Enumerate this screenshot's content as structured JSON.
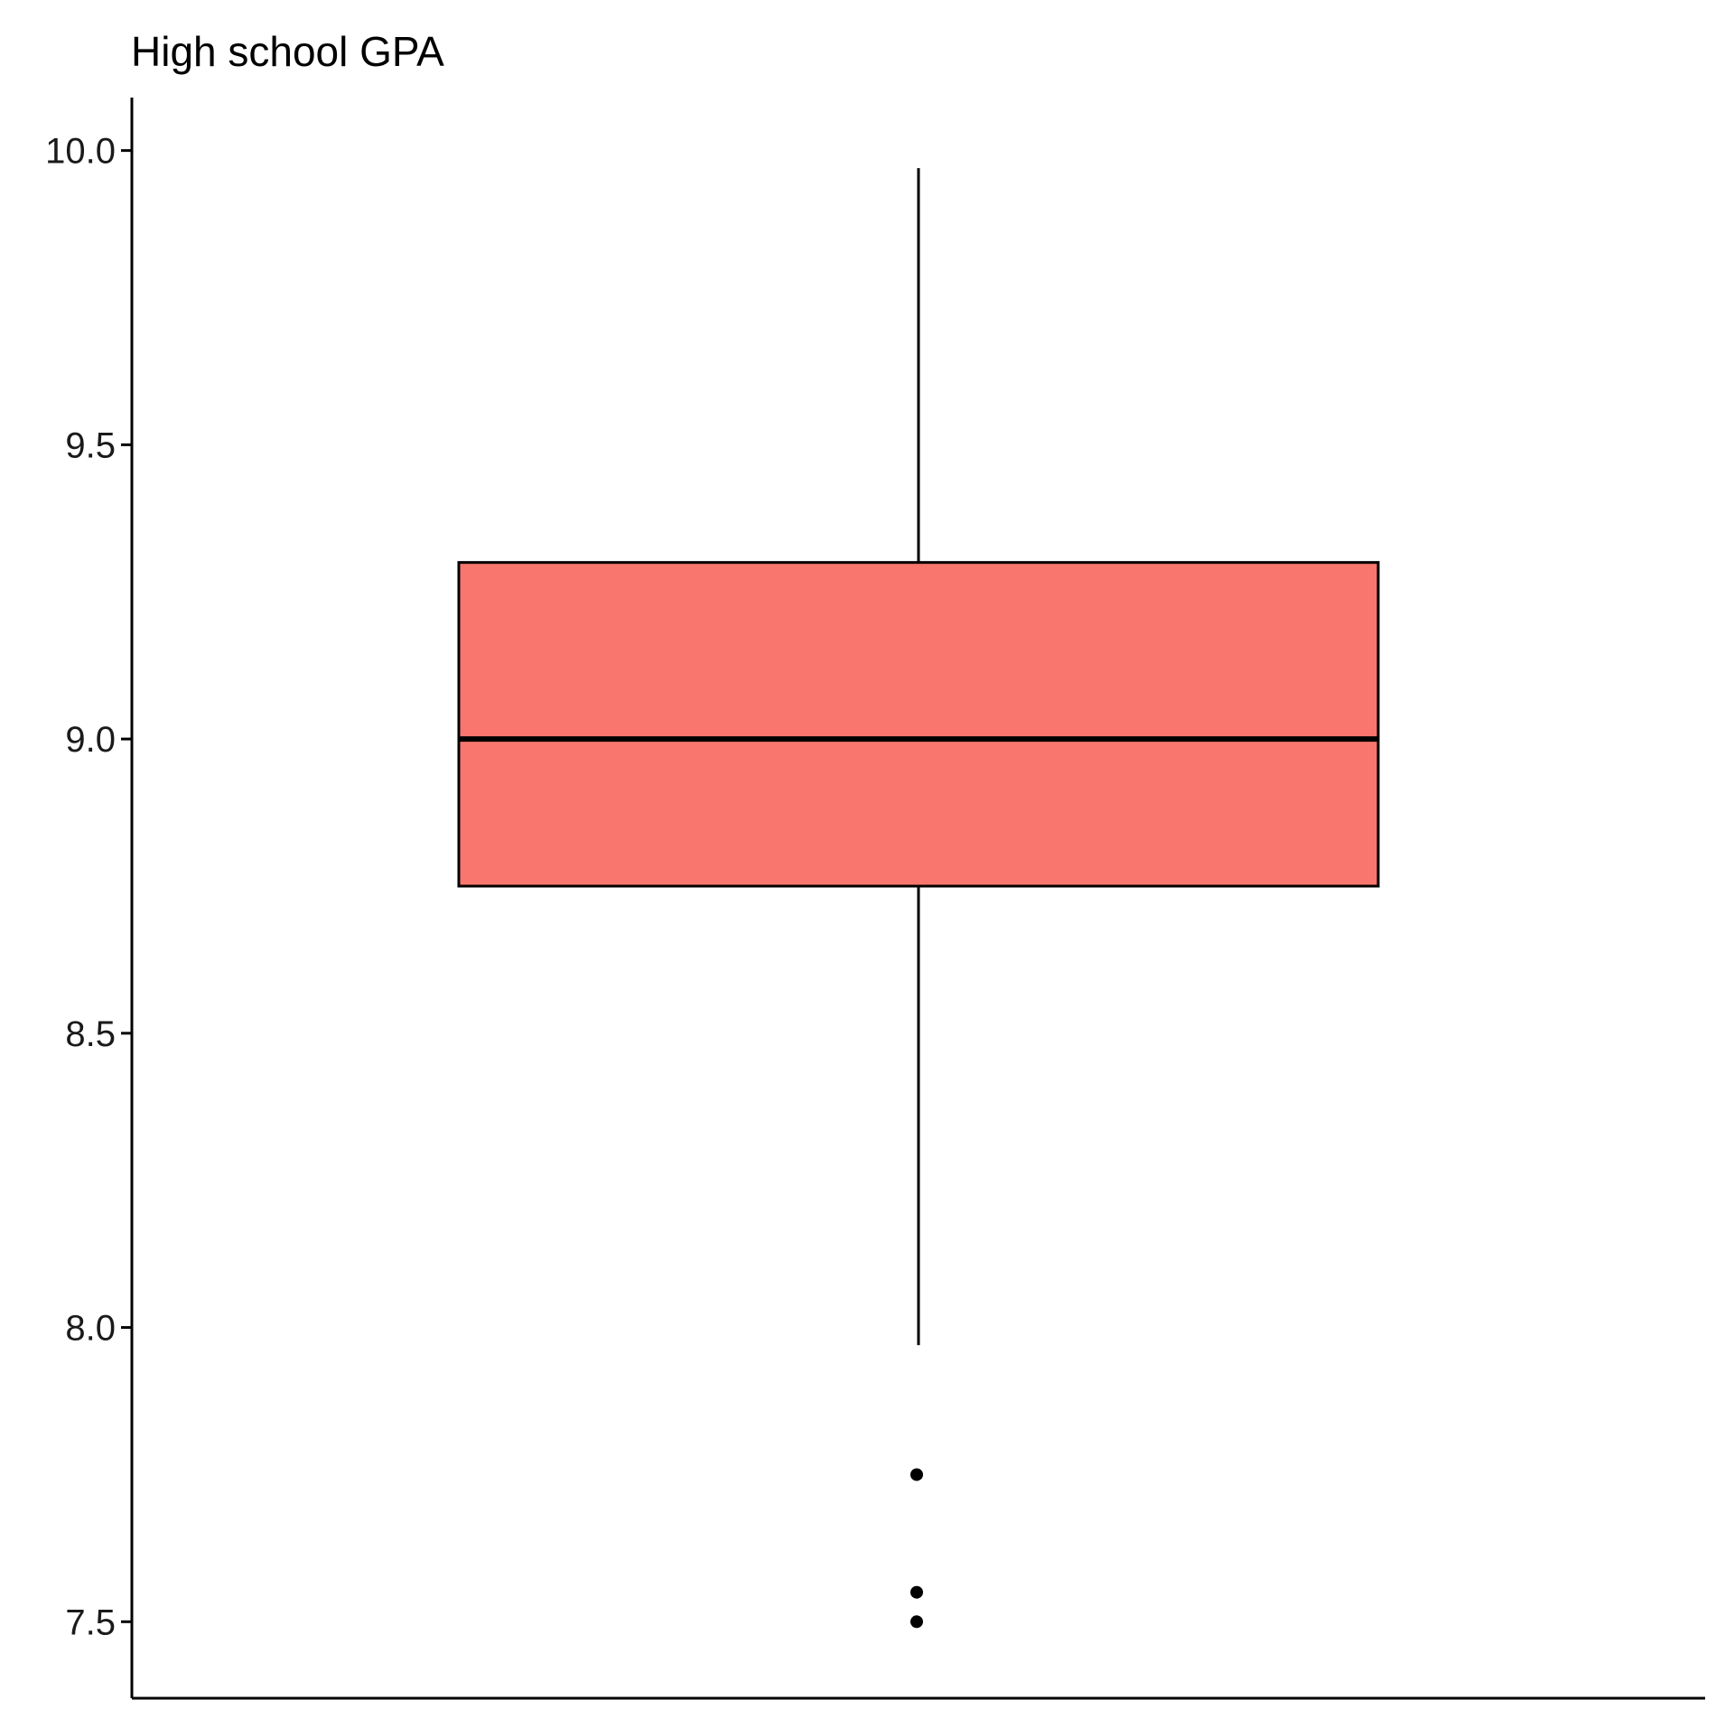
{
  "chart_data": {
    "type": "boxplot",
    "title": "High school GPA",
    "xlabel": "",
    "ylabel": "",
    "ylim": [
      7.37,
      10.09
    ],
    "y_ticks": [
      7.5,
      8.0,
      8.5,
      9.0,
      9.5,
      10.0
    ],
    "y_tick_labels": [
      "7.5",
      "8.0",
      "8.5",
      "9.0",
      "9.5",
      "10.0"
    ],
    "grid": false,
    "legend": "none",
    "fill_color": "#F8766D",
    "box": {
      "lower_whisker": 7.97,
      "q1": 8.75,
      "median": 9.0,
      "q3": 9.3,
      "upper_whisker": 9.97,
      "outliers": [
        7.75,
        7.55,
        7.5
      ]
    }
  }
}
